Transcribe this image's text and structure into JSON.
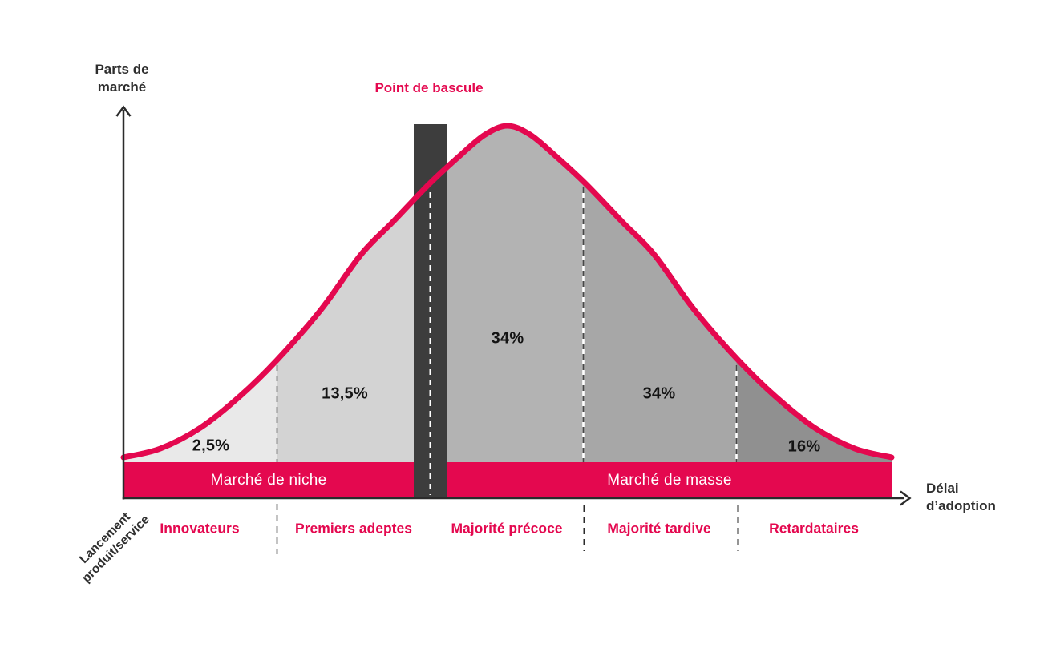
{
  "colors": {
    "accent": "#e4084f",
    "bar": "#3d3d3d",
    "axis": "#2b2b2b",
    "ink": "#2e2e2e",
    "band_text": "#ffffff",
    "value_text": "#141414"
  },
  "axes": {
    "y_title": {
      "line1": "Parts de",
      "line2": "marché"
    },
    "x_title": {
      "line1": "Délai",
      "line2": "d’adoption"
    }
  },
  "annotations": {
    "tipping_point": "Point de bascule",
    "launch": {
      "line1": "Lancement",
      "line2": "produit/service"
    }
  },
  "market_bands": [
    {
      "label": "Marché de niche"
    },
    {
      "label": "Marché de masse"
    }
  ],
  "chart_data": {
    "type": "area",
    "curve": "bell (diffusion of innovations adoption curve)",
    "xlabel": "Délai d’adoption",
    "ylabel": "Parts de marché",
    "legend_position": "none",
    "grid": false,
    "annotations": [
      "Point de bascule",
      "Lancement produit/service",
      "Marché de niche",
      "Marché de masse"
    ],
    "categories": [
      "Innovateurs",
      "Premiers adeptes",
      "Majorité précoce",
      "Majorité tardive",
      "Retardataires"
    ],
    "values": [
      2.5,
      13.5,
      34,
      34,
      16
    ],
    "segments": [
      {
        "category": "Innovateurs",
        "value": 2.5,
        "value_label": "2,5%",
        "color": "#e9e9e9",
        "market": "Marché de niche"
      },
      {
        "category": "Premiers adeptes",
        "value": 13.5,
        "value_label": "13,5%",
        "color": "#d3d3d3",
        "market": "Marché de niche"
      },
      {
        "category": "Majorité précoce",
        "value": 34,
        "value_label": "34%",
        "color": "#b3b3b3",
        "market": "Marché de masse"
      },
      {
        "category": "Majorité tardive",
        "value": 34,
        "value_label": "34%",
        "color": "#a7a7a7",
        "market": "Marché de masse"
      },
      {
        "category": "Retardataires",
        "value": 16,
        "value_label": "16%",
        "color": "#909090",
        "market": "Marché de masse"
      }
    ]
  }
}
